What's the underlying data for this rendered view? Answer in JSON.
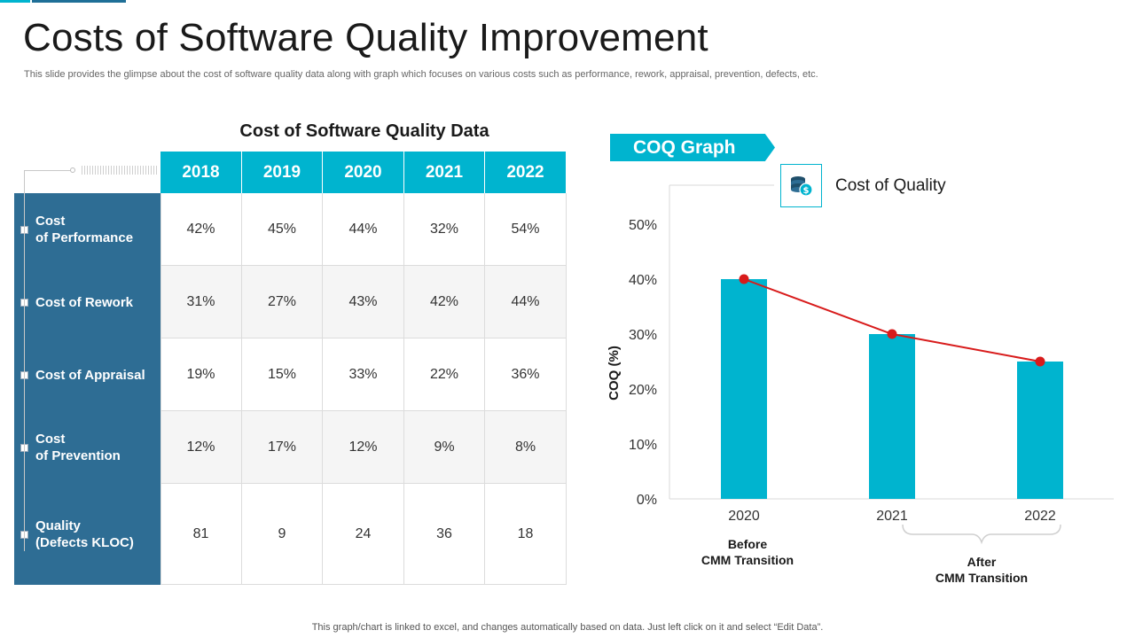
{
  "page": {
    "title": "Costs of Software Quality Improvement",
    "subtitle": "This slide provides the glimpse about the cost of software quality data along with graph which focuses on various costs such as performance, rework, appraisal, prevention, defects, etc.",
    "footer": "This graph/chart is linked to excel,  and changes automatically based on data. Just left click on it and select “Edit Data”."
  },
  "table": {
    "title": "Cost of Software Quality Data",
    "columns": [
      "2018",
      "2019",
      "2020",
      "2021",
      "2022"
    ],
    "rows": [
      {
        "label": "Cost\nof Performance",
        "values": [
          "42%",
          "45%",
          "44%",
          "32%",
          "54%"
        ]
      },
      {
        "label": "Cost of Rework",
        "values": [
          "31%",
          "27%",
          "43%",
          "42%",
          "44%"
        ]
      },
      {
        "label": "Cost of Appraisal",
        "values": [
          "19%",
          "15%",
          "33%",
          "22%",
          "36%"
        ]
      },
      {
        "label": "Cost\nof Prevention",
        "values": [
          "12%",
          "17%",
          "12%",
          "9%",
          "8%"
        ]
      },
      {
        "label": "Quality\n(Defects KLOC)",
        "values": [
          "81",
          "9",
          "24",
          "36",
          "18"
        ]
      }
    ]
  },
  "graph": {
    "tag": "COQ Graph",
    "legend_icon": "money-coins-icon",
    "colors": {
      "bar": "#00b4cf",
      "line": "#d81b1b",
      "accent_dark": "#2e6d94"
    }
  },
  "chart_data": {
    "type": "bar",
    "title": "COQ Graph",
    "categories": [
      "2020",
      "2021",
      "2022"
    ],
    "series": [
      {
        "name": "Cost of Quality",
        "values": [
          40,
          30,
          25
        ]
      }
    ],
    "line_overlay": {
      "values": [
        40,
        30,
        25
      ]
    },
    "ylabel": "COQ (%)",
    "xlabel": "",
    "ylim": [
      0,
      50
    ],
    "yticks": [
      "0%",
      "10%",
      "20%",
      "30%",
      "40%",
      "50%"
    ],
    "legend": "top-center",
    "annotations": [
      {
        "text": "Before\nCMM Transition",
        "applies_to": [
          "2020"
        ]
      },
      {
        "text": "After\nCMM Transition",
        "applies_to": [
          "2021",
          "2022"
        ]
      }
    ]
  }
}
